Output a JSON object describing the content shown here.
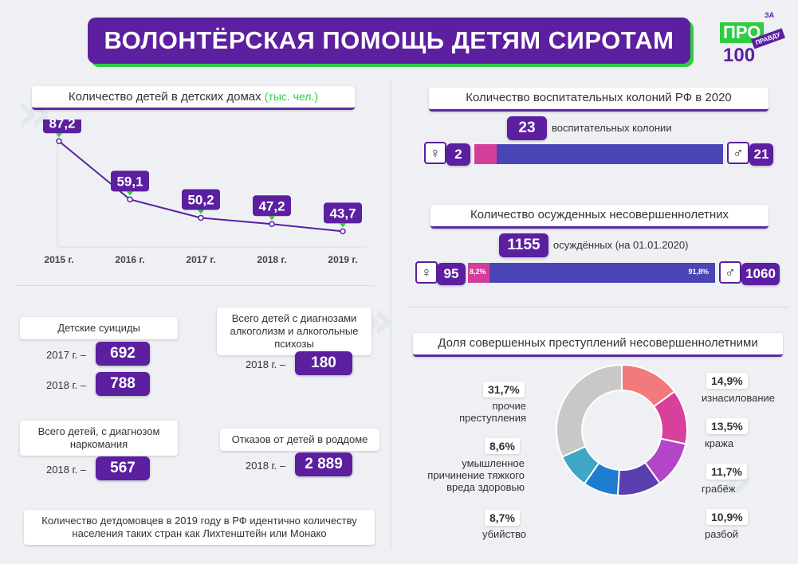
{
  "header": {
    "title": "ВОЛОНТЁРСКАЯ ПОМОЩЬ ДЕТЯМ СИРОТАМ",
    "logo_top": "ЗА",
    "logo_main": "ПРО",
    "logo_sub": "ПРАВДУ",
    "logo_num": "100"
  },
  "orphanage": {
    "title": "Количество детей в детских домах",
    "unit": "(тыс. чел.)"
  },
  "chart_data": [
    {
      "type": "line",
      "title": "Количество детей в детских домах",
      "categories": [
        "2015 г.",
        "2016 г.",
        "2017 г.",
        "2018 г.",
        "2019 г."
      ],
      "values": [
        87.2,
        59.1,
        50.2,
        47.2,
        43.7
      ],
      "value_labels": [
        "87,2",
        "59,1",
        "50,2",
        "47,2",
        "43,7"
      ],
      "ylim": [
        40,
        90
      ],
      "color": "#5b1fa0"
    },
    {
      "type": "pie",
      "title": "Доля совершенных преступлений несовершеннолетними",
      "labels": [
        "изнасилование",
        "кража",
        "грабёж",
        "разбой",
        "убийство",
        "умышленное причинение тяжкого вреда здоровью",
        "прочие преступления"
      ],
      "values": [
        14.9,
        13.5,
        11.7,
        10.9,
        8.7,
        8.6,
        31.7
      ],
      "colors": [
        "#f27a7a",
        "#d9409b",
        "#b345c7",
        "#5a3fb0",
        "#1e7ccf",
        "#3fa7c4",
        "#c8c8c8"
      ]
    }
  ],
  "colonies": {
    "title": "Количество воспитательных колоний РФ в 2020",
    "total": "23",
    "total_label": "воспитательных колонии",
    "female": "2",
    "male": "21"
  },
  "convicts": {
    "title": "Количество осужденных несовершеннолетних",
    "total": "1155",
    "total_label": "осуждённых (на 01.01.2020)",
    "female": "95",
    "male": "1060",
    "female_pct": "8,2%",
    "male_pct": "91,8%"
  },
  "stats": {
    "suicides_title": "Детские суициды",
    "suicides_2017_label": "2017 г. –",
    "suicides_2017": "692",
    "suicides_2018_label": "2018 г. –",
    "suicides_2018": "788",
    "alcohol_title": "Всего детей с диагнозами алкоголизм и алкогольные психозы",
    "alcohol_label": "2018 г. –",
    "alcohol_value": "180",
    "drugs_title": "Всего детей, с диагнозом наркомания",
    "drugs_label": "2018 г. –",
    "drugs_value": "567",
    "refusals_title": "Отказов от детей в роддоме",
    "refusals_label": "2018 г. –",
    "refusals_value": "2 889",
    "footnote": "Количество детдомовцев в 2019 году в РФ идентично количеству населения таких стран как Лихтенштейн или Монако"
  },
  "crimes": {
    "title": "Доля совершенных преступлений несовершеннолетними",
    "items": [
      {
        "pct": "14,9%",
        "label": "изнасилование"
      },
      {
        "pct": "13,5%",
        "label": "кража"
      },
      {
        "pct": "11,7%",
        "label": "грабёж"
      },
      {
        "pct": "10,9%",
        "label": "разбой"
      },
      {
        "pct": "8,7%",
        "label": "убийство"
      },
      {
        "pct": "8,6%",
        "label": "умышленное причинение тяжкого вреда здоровью"
      },
      {
        "pct": "31,7%",
        "label": "прочие преступления"
      }
    ]
  }
}
